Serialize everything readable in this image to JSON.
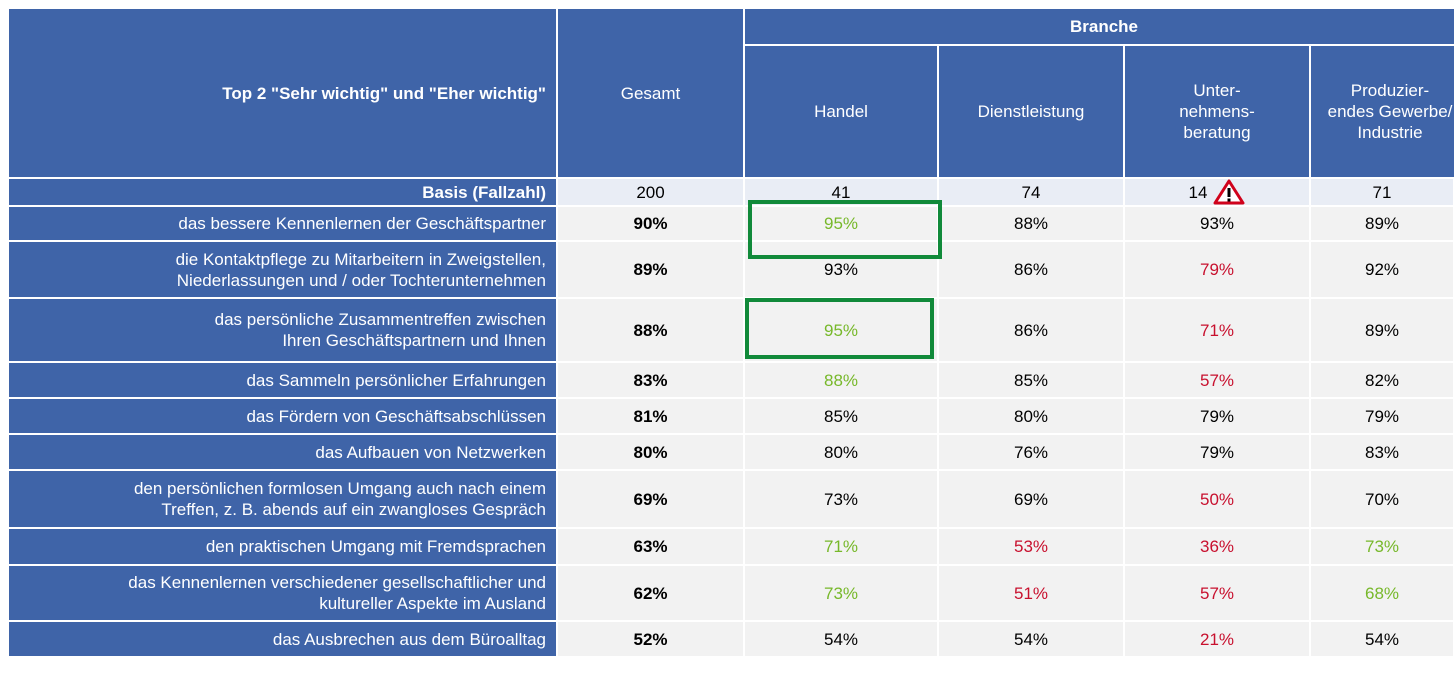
{
  "header": {
    "group": "Branche",
    "title": "Top 2 \"Sehr wichtig\" und \"Eher wichtig\"",
    "columns": [
      "Gesamt",
      "Handel",
      "Dienstleistung",
      "Unter-\nnehmens-\nberatung",
      "Produzier-\nendes Gewerbe/\nIndustrie"
    ]
  },
  "basis": {
    "label": "Basis (Fallzahl)",
    "values": [
      "200",
      "41",
      "74",
      "14",
      "71"
    ],
    "warning": [
      false,
      false,
      false,
      true,
      false
    ]
  },
  "rows": [
    {
      "label": "das bessere Kennenlernen der Geschäftspartner",
      "values": [
        "90%",
        "95%",
        "88%",
        "93%",
        "89%"
      ],
      "colors": [
        "#000000",
        "#77b82a",
        "#000000",
        "#000000",
        "#000000"
      ]
    },
    {
      "label": "die Kontaktpflege zu Mitarbeitern in Zweigstellen,\nNiederlassungen und / oder Tochterunternehmen",
      "values": [
        "89%",
        "93%",
        "86%",
        "79%",
        "92%"
      ],
      "colors": [
        "#000000",
        "#000000",
        "#000000",
        "#c8102e",
        "#000000"
      ]
    },
    {
      "label": "das persönliche Zusammentreffen zwischen\nIhren Geschäftspartnern und Ihnen",
      "values": [
        "88%",
        "95%",
        "86%",
        "71%",
        "89%"
      ],
      "colors": [
        "#000000",
        "#77b82a",
        "#000000",
        "#c8102e",
        "#000000"
      ]
    },
    {
      "label": "das Sammeln persönlicher Erfahrungen",
      "values": [
        "83%",
        "88%",
        "85%",
        "57%",
        "82%"
      ],
      "colors": [
        "#000000",
        "#77b82a",
        "#000000",
        "#c8102e",
        "#000000"
      ]
    },
    {
      "label": "das Fördern von Geschäftsabschlüssen",
      "values": [
        "81%",
        "85%",
        "80%",
        "79%",
        "79%"
      ],
      "colors": [
        "#000000",
        "#000000",
        "#000000",
        "#000000",
        "#000000"
      ]
    },
    {
      "label": "das Aufbauen von Netzwerken",
      "values": [
        "80%",
        "80%",
        "76%",
        "79%",
        "83%"
      ],
      "colors": [
        "#000000",
        "#000000",
        "#000000",
        "#000000",
        "#000000"
      ]
    },
    {
      "label": "den persönlichen formlosen Umgang auch nach einem\nTreffen, z. B. abends auf ein zwangloses Gespräch",
      "values": [
        "69%",
        "73%",
        "69%",
        "50%",
        "70%"
      ],
      "colors": [
        "#000000",
        "#000000",
        "#000000",
        "#c8102e",
        "#000000"
      ]
    },
    {
      "label": "den praktischen Umgang mit Fremdsprachen",
      "values": [
        "63%",
        "71%",
        "53%",
        "36%",
        "73%"
      ],
      "colors": [
        "#000000",
        "#77b82a",
        "#c8102e",
        "#c8102e",
        "#77b82a"
      ]
    },
    {
      "label": "das Kennenlernen verschiedener gesellschaftlicher und\nkultureller Aspekte im Ausland",
      "values": [
        "62%",
        "73%",
        "51%",
        "57%",
        "68%"
      ],
      "colors": [
        "#000000",
        "#77b82a",
        "#c8102e",
        "#c8102e",
        "#77b82a"
      ]
    },
    {
      "label": "das Ausbrechen aus dem Büroalltag",
      "values": [
        "52%",
        "54%",
        "54%",
        "21%",
        "54%"
      ],
      "colors": [
        "#000000",
        "#000000",
        "#000000",
        "#c8102e",
        "#000000"
      ]
    }
  ]
}
